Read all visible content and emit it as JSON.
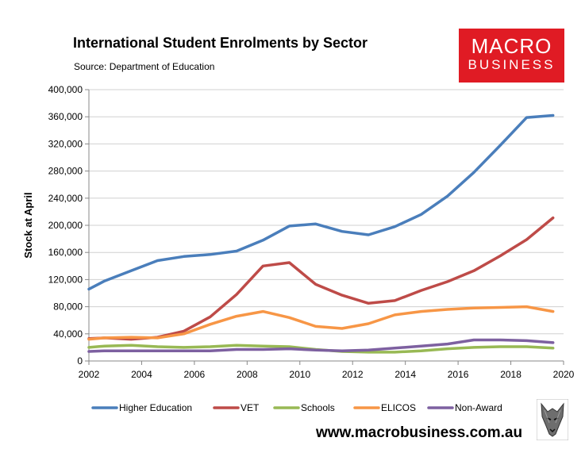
{
  "header": {
    "title": "International Student Enrolments by Sector",
    "source": "Source: Department of Education"
  },
  "logo": {
    "line1": "MACRO",
    "line2": "BUSINESS",
    "color": "#e01b24"
  },
  "footer": {
    "url": "www.macrobusiness.com.au"
  },
  "chart_data": {
    "type": "line",
    "title": "International Student Enrolments by Sector",
    "subtitle": "Source: Department of Education",
    "xlabel": "",
    "ylabel": "Stock at April",
    "xlim": [
      2002,
      2020
    ],
    "ylim": [
      0,
      400000
    ],
    "xticks": [
      2002,
      2004,
      2006,
      2008,
      2010,
      2012,
      2014,
      2016,
      2018,
      2020
    ],
    "yticks": [
      0,
      40000,
      80000,
      120000,
      160000,
      200000,
      240000,
      280000,
      320000,
      360000,
      400000
    ],
    "ytick_labels": [
      "0",
      "40,000",
      "80,000",
      "120,000",
      "160,000",
      "200,000",
      "240,000",
      "280,000",
      "320,000",
      "360,000",
      "400,000"
    ],
    "grid": true,
    "legend": "bottom",
    "x": [
      2002,
      2002.6,
      2003.6,
      2004.6,
      2005.6,
      2006.6,
      2007.6,
      2008.6,
      2009.6,
      2010.6,
      2011.6,
      2012.6,
      2013.6,
      2014.6,
      2015.6,
      2016.6,
      2017.6,
      2018.6,
      2019.6
    ],
    "series": [
      {
        "name": "Higher Education",
        "color": "#4a7ebb",
        "values": [
          106000,
          118000,
          133000,
          148000,
          154000,
          157000,
          162000,
          178000,
          199000,
          202000,
          191000,
          186000,
          198000,
          216000,
          243000,
          278000,
          318000,
          359000,
          362000
        ]
      },
      {
        "name": "VET",
        "color": "#be4b48",
        "values": [
          33000,
          34000,
          32000,
          35000,
          44000,
          65000,
          98000,
          140000,
          145000,
          113000,
          97000,
          85000,
          89000,
          104000,
          117000,
          133000,
          155000,
          179000,
          211000
        ]
      },
      {
        "name": "Schools",
        "color": "#98b954",
        "values": [
          20000,
          22000,
          23000,
          21000,
          20000,
          21000,
          23000,
          22000,
          21000,
          17000,
          14000,
          13000,
          13000,
          15000,
          18000,
          20000,
          21000,
          21000,
          19000
        ]
      },
      {
        "name": "ELICOS",
        "color": "#f79646",
        "values": [
          32000,
          34000,
          35000,
          34000,
          40000,
          54000,
          66000,
          73000,
          64000,
          51000,
          48000,
          55000,
          68000,
          73000,
          76000,
          78000,
          79000,
          80000,
          73000
        ]
      },
      {
        "name": "Non-Award",
        "color": "#7d60a0",
        "values": [
          14000,
          15000,
          15000,
          15000,
          15000,
          15000,
          17000,
          17000,
          18000,
          16000,
          15000,
          16000,
          19000,
          22000,
          25000,
          31000,
          31000,
          30000,
          27000
        ]
      }
    ]
  }
}
